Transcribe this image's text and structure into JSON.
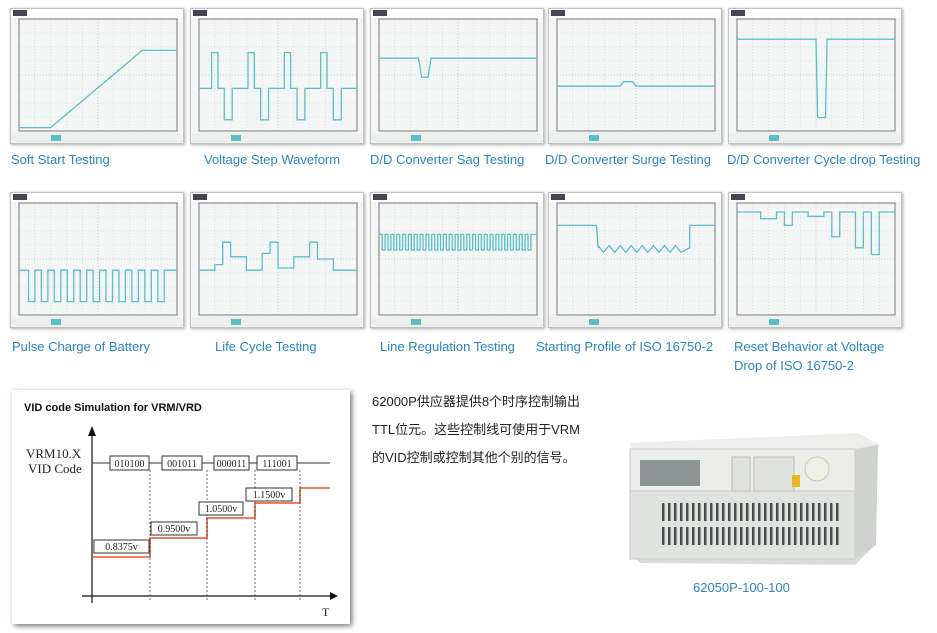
{
  "scopes": [
    {
      "caption": "Soft Start Testing"
    },
    {
      "caption": "Voltage Step Waveform"
    },
    {
      "caption": "D/D Converter Sag Testing"
    },
    {
      "caption": "D/D Converter Surge Testing"
    },
    {
      "caption": "D/D Converter Cycle drop Testing"
    },
    {
      "caption": "Pulse Charge of Battery"
    },
    {
      "caption": "Life Cycle Testing"
    },
    {
      "caption": "Line Regulation Testing"
    },
    {
      "caption": "Starting Profile of ISO 16750-2"
    },
    {
      "caption": "Reset Behavior at Voltage Drop of ISO 16750-2"
    }
  ],
  "trace_color": "#5bbfc4",
  "vid_chart": {
    "title": "VID code Simulation for VRM/VRD",
    "ylabel_1": "VRM10.X",
    "ylabel_2": "VID Code",
    "xlabel": "T",
    "codes": [
      "010100",
      "001011",
      "000011",
      "111001"
    ],
    "voltages": [
      "0.8375v",
      "0.9500v",
      "1.0500v",
      "1.1500v"
    ],
    "voltage_color": "#e8532f"
  },
  "description": "62000P供应器提供8个时序控制输出TTL位元。这些控制线可使用于VRM的VID控制或控制其他个别的信号。",
  "product": {
    "model": "62050P-100-100"
  }
}
